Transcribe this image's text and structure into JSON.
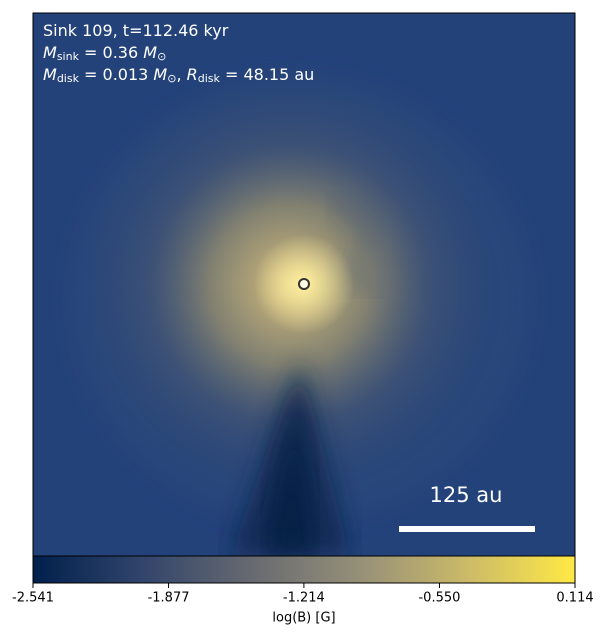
{
  "chart_data": {
    "type": "image",
    "annotations": [
      [
        {
          "text": "Sink 109, t=112.46 kyr",
          "style": "normal"
        }
      ],
      [
        {
          "text": "M",
          "style": "italic"
        },
        {
          "text": "sink",
          "style": "sub"
        },
        {
          "text": " = 0.36 ",
          "style": "normal"
        },
        {
          "text": "M",
          "style": "italic"
        },
        {
          "text": "⊙",
          "style": "sub"
        }
      ],
      [
        {
          "text": "M",
          "style": "italic"
        },
        {
          "text": "disk",
          "style": "sub"
        },
        {
          "text": " = 0.013 ",
          "style": "normal"
        },
        {
          "text": "M",
          "style": "italic"
        },
        {
          "text": "⊙",
          "style": "sub"
        },
        {
          "text": ", ",
          "style": "normal"
        },
        {
          "text": "R",
          "style": "italic"
        },
        {
          "text": "disk",
          "style": "sub"
        },
        {
          "text": " = 48.15 au",
          "style": "normal"
        }
      ]
    ],
    "scale_bar_label": "125 au",
    "colorbar": {
      "label": "log(B) [G]",
      "clim": [
        -2.541,
        0.114
      ],
      "ticks": [
        -2.541,
        -1.877,
        -1.214,
        {
          "value": -0.55,
          "label": "-0.550"
        },
        0.114
      ]
    }
  }
}
